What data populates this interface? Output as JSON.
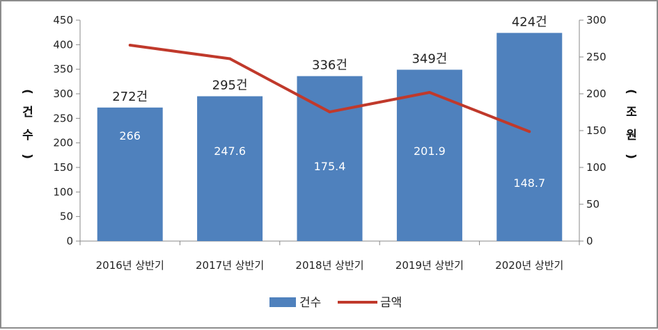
{
  "chart_data": {
    "type": "bar",
    "categories": [
      "2016년 상반기",
      "2017년 상반기",
      "2018년 상반기",
      "2019년 상반기",
      "2020년 상반기"
    ],
    "series": [
      {
        "name": "건수",
        "type": "bar",
        "axis": "left",
        "color": "#4f81bd",
        "values": [
          272,
          295,
          336,
          349,
          424
        ],
        "labels": [
          "272건",
          "295건",
          "336건",
          "349건",
          "424건"
        ]
      },
      {
        "name": "금액",
        "type": "line",
        "axis": "right",
        "color": "#c0392b",
        "values": [
          266,
          247.6,
          175.4,
          201.9,
          148.7
        ],
        "labels": [
          "266",
          "247.6",
          "175.4",
          "201.9",
          "148.7"
        ]
      }
    ],
    "y_left": {
      "label_chars": [
        "(",
        "건",
        "수",
        ")"
      ],
      "ylim": [
        0,
        450
      ],
      "ticks": [
        "0",
        "50",
        "100",
        "150",
        "200",
        "250",
        "300",
        "350",
        "400",
        "450"
      ]
    },
    "y_right": {
      "label_chars": [
        "(",
        "조",
        "원",
        ")"
      ],
      "ylim": [
        0,
        300
      ],
      "ticks": [
        "0",
        "50",
        "100",
        "150",
        "200",
        "250",
        "300"
      ]
    },
    "legend_position": "bottom",
    "grid": false
  }
}
